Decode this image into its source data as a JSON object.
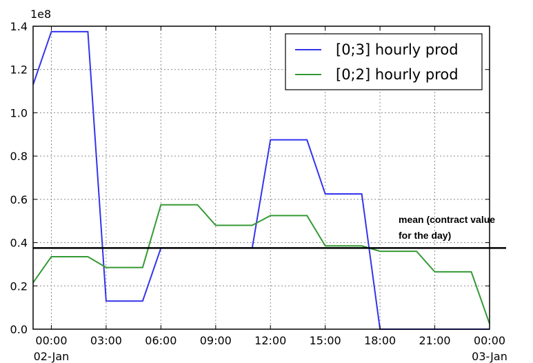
{
  "chart_data": {
    "type": "line",
    "title": "",
    "xlabel": "",
    "ylabel": "",
    "y_multiplier_label": "1e8",
    "ylim": [
      0.0,
      1.4
    ],
    "xlim": [
      -1,
      24
    ],
    "grid": true,
    "legend_position": "top-right",
    "y_ticks": [
      {
        "value": 0.0,
        "label": "0.0"
      },
      {
        "value": 0.2,
        "label": "0.2"
      },
      {
        "value": 0.4,
        "label": "0.4"
      },
      {
        "value": 0.6,
        "label": "0.6"
      },
      {
        "value": 0.8,
        "label": "0.8"
      },
      {
        "value": 1.0,
        "label": "1.0"
      },
      {
        "value": 1.2,
        "label": "1.2"
      },
      {
        "value": 1.4,
        "label": "1.4"
      }
    ],
    "x_ticks": [
      {
        "value": 0,
        "label": "00:00",
        "sublabel": "02-Jan"
      },
      {
        "value": 3,
        "label": "03:00",
        "sublabel": ""
      },
      {
        "value": 6,
        "label": "06:00",
        "sublabel": ""
      },
      {
        "value": 9,
        "label": "09:00",
        "sublabel": ""
      },
      {
        "value": 12,
        "label": "12:00",
        "sublabel": ""
      },
      {
        "value": 15,
        "label": "15:00",
        "sublabel": ""
      },
      {
        "value": 18,
        "label": "18:00",
        "sublabel": ""
      },
      {
        "value": 21,
        "label": "21:00",
        "sublabel": ""
      },
      {
        "value": 24,
        "label": "00:00",
        "sublabel": "03-Jan"
      }
    ],
    "series": [
      {
        "name": "[0;3] hourly prod",
        "color": "#3333ee",
        "x": [
          -1,
          0,
          1,
          2,
          3,
          4,
          5,
          6,
          7,
          8,
          9,
          10,
          11,
          12,
          13,
          14,
          15,
          16,
          17,
          18,
          19,
          20,
          21,
          22,
          23,
          24
        ],
        "y": [
          1.13,
          1.375,
          1.375,
          1.375,
          0.13,
          0.13,
          0.13,
          0.375,
          0.375,
          0.375,
          0.375,
          0.375,
          0.375,
          0.875,
          0.875,
          0.875,
          0.625,
          0.625,
          0.625,
          0.0,
          0.0,
          0.0,
          0.0,
          0.0,
          0.0,
          0.0
        ]
      },
      {
        "name": "[0;2] hourly prod",
        "color": "#339933",
        "x": [
          -1,
          0,
          1,
          2,
          3,
          4,
          5,
          6,
          7,
          8,
          9,
          10,
          11,
          12,
          13,
          14,
          15,
          16,
          17,
          18,
          19,
          20,
          21,
          22,
          23,
          24
        ],
        "y": [
          0.215,
          0.335,
          0.335,
          0.335,
          0.285,
          0.285,
          0.285,
          0.575,
          0.575,
          0.575,
          0.48,
          0.48,
          0.48,
          0.525,
          0.525,
          0.525,
          0.385,
          0.385,
          0.385,
          0.36,
          0.36,
          0.36,
          0.265,
          0.265,
          0.265,
          0.025
        ]
      }
    ],
    "mean_line": {
      "value": 0.375,
      "color": "#000000"
    },
    "annotation": {
      "lines": [
        "mean (contract value",
        "for the day)"
      ]
    }
  }
}
